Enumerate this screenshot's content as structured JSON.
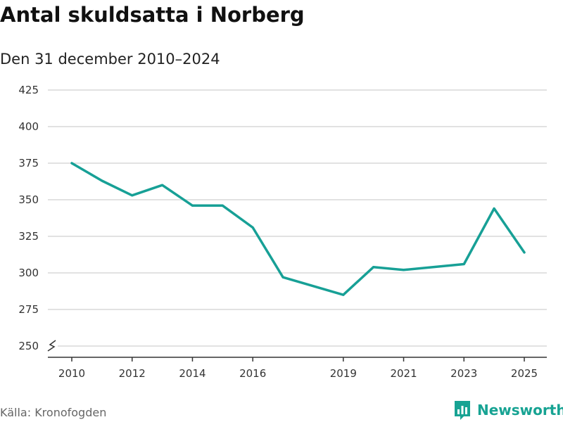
{
  "header": {
    "title": "Antal skuldsatta i Norberg",
    "subtitle": "Den 31 december 2010–2024"
  },
  "footer": {
    "source": "Källa: Kronofogden",
    "brand": "Newsworthy"
  },
  "colors": {
    "line": "#17a096",
    "grid": "#d9d9d9",
    "brand": "#17a393"
  },
  "chart_data": {
    "type": "line",
    "title": "Antal skuldsatta i Norberg",
    "subtitle": "Den 31 december 2010–2024",
    "xlabel": "",
    "ylabel": "",
    "x": [
      2010,
      2011,
      2012,
      2013,
      2014,
      2015,
      2016,
      2017,
      2019,
      2020,
      2021,
      2023,
      2024,
      2025
    ],
    "values": [
      375,
      363,
      353,
      360,
      346,
      346,
      331,
      297,
      285,
      304,
      302,
      306,
      344,
      314
    ],
    "xlim": [
      2010,
      2025
    ],
    "ylim": [
      250,
      425
    ],
    "x_ticks": [
      "2010",
      "2012",
      "2014",
      "2016",
      "2019",
      "2021",
      "2023",
      "2025"
    ],
    "y_ticks": [
      "250",
      "275",
      "300",
      "325",
      "350",
      "375",
      "400",
      "425"
    ],
    "grid": true,
    "axis_break": true
  }
}
